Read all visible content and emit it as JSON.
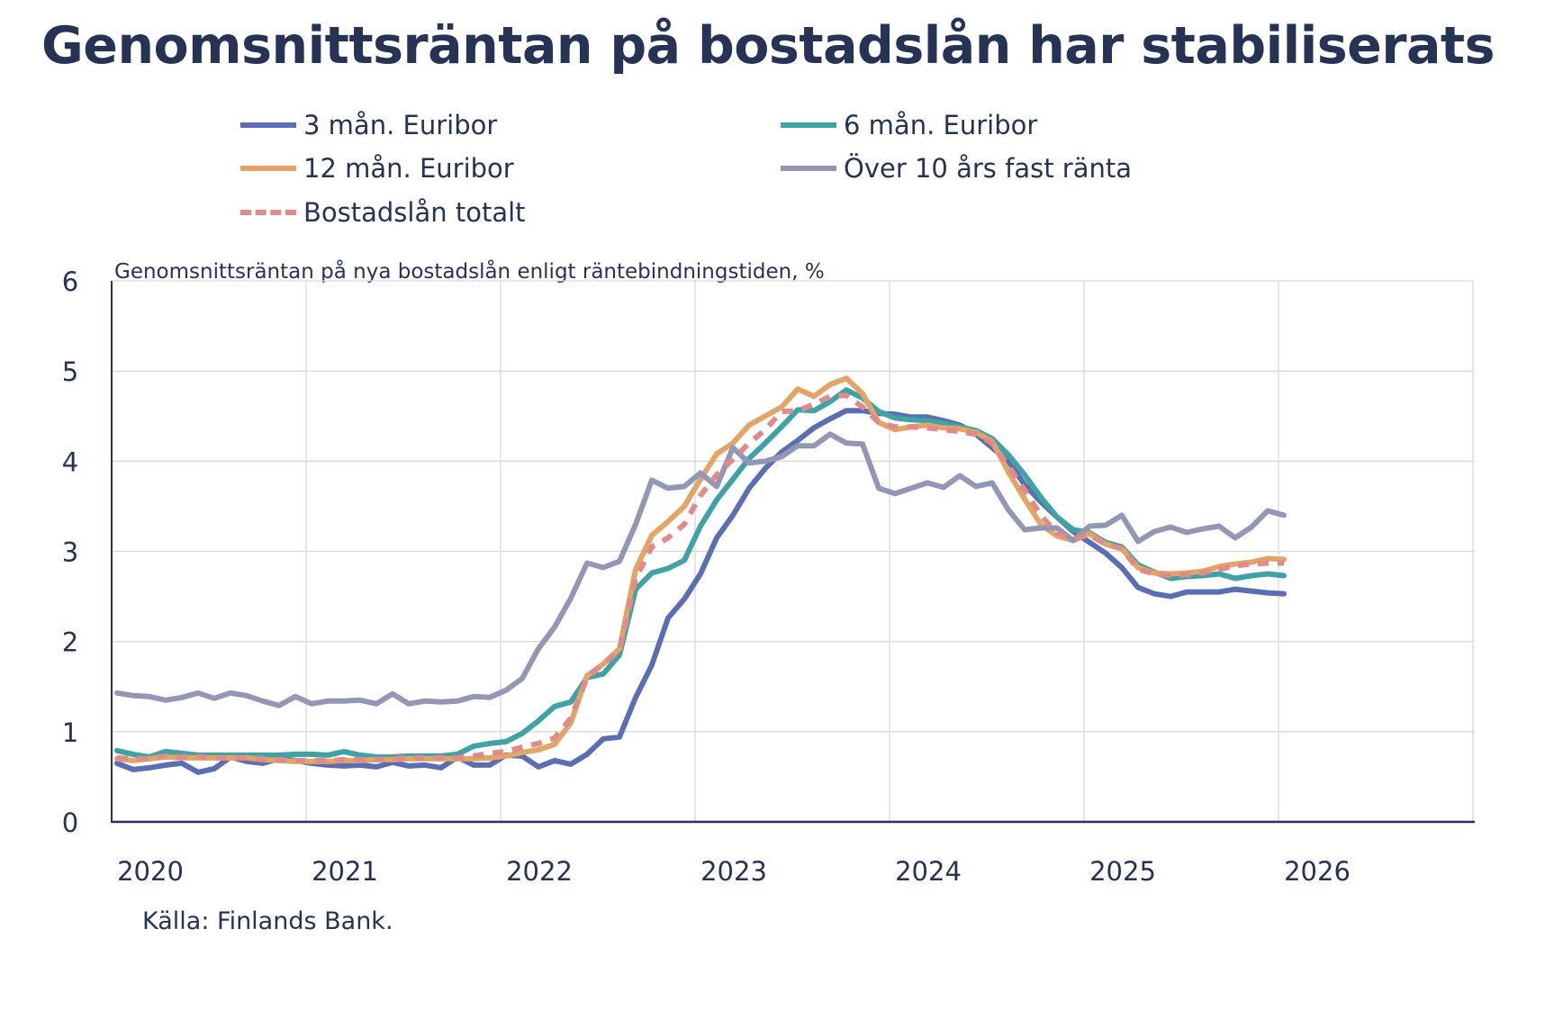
{
  "title": "Genomsnittsräntan på bostadslån har stabiliserats",
  "chart_data": {
    "type": "line",
    "subtitle": "Genomsnittsräntan på nya bostadslån enligt räntebindningstiden, %",
    "source": "Källa: Finlands Bank.",
    "x_start": "2020-01",
    "x_frequency": "monthly",
    "x_tick_labels": [
      "2020",
      "2021",
      "2022",
      "2023",
      "2024",
      "2025",
      "2026"
    ],
    "xlim": [
      "2020-01",
      "2026-12"
    ],
    "ylim": [
      0,
      6
    ],
    "y_ticks": [
      "0",
      "1",
      "2",
      "3",
      "4",
      "5",
      "6"
    ],
    "grid": true,
    "legend_position": "top",
    "series": [
      {
        "name": "3 mån. Euribor",
        "color": "#5b6db3",
        "dashed": false,
        "values": [
          0.65,
          0.58,
          0.6,
          0.63,
          0.65,
          0.55,
          0.59,
          0.72,
          0.67,
          0.65,
          0.7,
          0.68,
          0.65,
          0.63,
          0.62,
          0.63,
          0.61,
          0.66,
          0.62,
          0.63,
          0.6,
          0.72,
          0.63,
          0.63,
          0.74,
          0.73,
          0.61,
          0.68,
          0.64,
          0.75,
          0.92,
          0.94,
          1.38,
          1.74,
          2.26,
          2.47,
          2.75,
          3.15,
          3.4,
          3.7,
          3.92,
          4.1,
          4.23,
          4.37,
          4.47,
          4.56,
          4.56,
          4.53,
          4.52,
          4.49,
          4.49,
          4.45,
          4.4,
          4.3,
          4.15,
          4.0,
          3.74,
          3.55,
          3.38,
          3.22,
          3.1,
          2.98,
          2.82,
          2.6,
          2.53,
          2.5,
          2.55,
          2.55,
          2.55,
          2.58,
          2.56,
          2.54,
          2.53
        ]
      },
      {
        "name": "6 mån. Euribor",
        "color": "#3fa2a5",
        "dashed": false,
        "values": [
          0.79,
          0.75,
          0.72,
          0.78,
          0.76,
          0.74,
          0.74,
          0.74,
          0.74,
          0.74,
          0.74,
          0.75,
          0.75,
          0.74,
          0.78,
          0.74,
          0.72,
          0.72,
          0.73,
          0.73,
          0.73,
          0.75,
          0.84,
          0.87,
          0.89,
          0.98,
          1.12,
          1.28,
          1.33,
          1.6,
          1.64,
          1.85,
          2.58,
          2.76,
          2.81,
          2.9,
          3.28,
          3.57,
          3.8,
          4.03,
          4.2,
          4.38,
          4.57,
          4.56,
          4.66,
          4.79,
          4.7,
          4.55,
          4.48,
          4.46,
          4.45,
          4.42,
          4.38,
          4.34,
          4.25,
          4.07,
          3.85,
          3.6,
          3.38,
          3.24,
          3.21,
          3.1,
          3.05,
          2.85,
          2.77,
          2.7,
          2.72,
          2.73,
          2.75,
          2.7,
          2.73,
          2.75,
          2.73
        ]
      },
      {
        "name": "12 mån. Euribor",
        "color": "#e3a565",
        "dashed": false,
        "values": [
          0.7,
          0.68,
          0.7,
          0.72,
          0.71,
          0.71,
          0.71,
          0.71,
          0.71,
          0.69,
          0.68,
          0.67,
          0.67,
          0.67,
          0.68,
          0.68,
          0.69,
          0.69,
          0.7,
          0.7,
          0.7,
          0.7,
          0.7,
          0.71,
          0.73,
          0.77,
          0.8,
          0.86,
          1.1,
          1.62,
          1.75,
          1.92,
          2.8,
          3.18,
          3.33,
          3.5,
          3.8,
          4.08,
          4.2,
          4.4,
          4.5,
          4.6,
          4.8,
          4.72,
          4.85,
          4.92,
          4.75,
          4.43,
          4.35,
          4.38,
          4.4,
          4.37,
          4.36,
          4.32,
          4.22,
          3.88,
          3.58,
          3.3,
          3.17,
          3.12,
          3.2,
          3.08,
          3.03,
          2.82,
          2.76,
          2.75,
          2.76,
          2.78,
          2.83,
          2.86,
          2.88,
          2.92,
          2.91
        ]
      },
      {
        "name": "Över 10 års fast ränta",
        "color": "#9297b5",
        "dashed": false,
        "values": [
          1.43,
          1.4,
          1.39,
          1.35,
          1.38,
          1.43,
          1.37,
          1.43,
          1.4,
          1.34,
          1.29,
          1.39,
          1.31,
          1.34,
          1.34,
          1.35,
          1.31,
          1.42,
          1.31,
          1.34,
          1.33,
          1.34,
          1.39,
          1.38,
          1.46,
          1.59,
          1.92,
          2.16,
          2.48,
          2.87,
          2.82,
          2.89,
          3.3,
          3.79,
          3.7,
          3.72,
          3.87,
          3.72,
          4.15,
          3.98,
          4.0,
          4.05,
          4.17,
          4.17,
          4.3,
          4.2,
          4.19,
          3.7,
          3.64,
          3.7,
          3.76,
          3.71,
          3.84,
          3.72,
          3.76,
          3.46,
          3.24,
          3.26,
          3.26,
          3.12,
          3.28,
          3.29,
          3.4,
          3.11,
          3.22,
          3.27,
          3.21,
          3.25,
          3.28,
          3.15,
          3.27,
          3.45,
          3.4
        ]
      },
      {
        "name": "Bostadslån totalt",
        "color": "#e08a8a",
        "dashed": true,
        "values": [
          0.71,
          0.7,
          0.7,
          0.73,
          0.72,
          0.72,
          0.71,
          0.71,
          0.71,
          0.7,
          0.69,
          0.68,
          0.68,
          0.68,
          0.69,
          0.69,
          0.69,
          0.7,
          0.71,
          0.71,
          0.71,
          0.71,
          0.73,
          0.76,
          0.78,
          0.83,
          0.87,
          0.93,
          1.15,
          1.6,
          1.75,
          1.9,
          2.7,
          3.05,
          3.15,
          3.3,
          3.62,
          3.85,
          4.02,
          4.2,
          4.35,
          4.55,
          4.56,
          4.63,
          4.72,
          4.73,
          4.6,
          4.43,
          4.38,
          4.38,
          4.37,
          4.35,
          4.33,
          4.3,
          4.2,
          3.95,
          3.68,
          3.4,
          3.2,
          3.14,
          3.18,
          3.08,
          3.03,
          2.8,
          2.75,
          2.73,
          2.74,
          2.76,
          2.8,
          2.84,
          2.86,
          2.87,
          2.87
        ]
      }
    ]
  }
}
